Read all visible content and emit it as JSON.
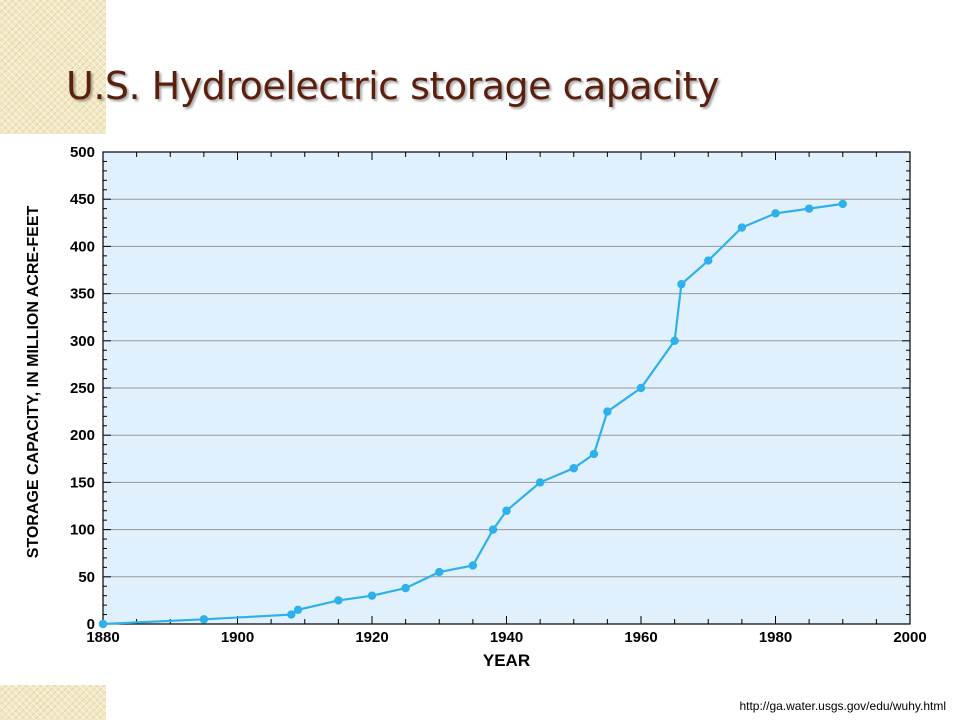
{
  "page": {
    "title": "U.S. Hydroelectric storage capacity",
    "source": "http://ga.water.usgs.gov/edu/wuhy.html"
  },
  "chart_data": {
    "type": "line",
    "title": "",
    "xlabel": "YEAR",
    "ylabel": "STORAGE CAPACITY, IN MILLION ACRE-FEET",
    "xlim": [
      1880,
      2000
    ],
    "ylim": [
      0,
      500
    ],
    "xticks": [
      1880,
      1900,
      1920,
      1940,
      1960,
      1980,
      2000
    ],
    "yticks": [
      0,
      50,
      100,
      150,
      200,
      250,
      300,
      350,
      400,
      450,
      500
    ],
    "grid": "horizontal",
    "colors": {
      "plot_background": "#e0f0fc",
      "line": "#2eb1ea",
      "grid": "#999999"
    },
    "series": [
      {
        "x": [
          1880,
          1895,
          1908,
          1909,
          1915,
          1920,
          1925,
          1930,
          1935,
          1938,
          1940,
          1945,
          1950,
          1953,
          1955,
          1960,
          1965,
          1966,
          1970,
          1975,
          1980,
          1985,
          1990
        ],
        "values": [
          0,
          5,
          10,
          15,
          25,
          30,
          38,
          55,
          62,
          100,
          120,
          150,
          165,
          180,
          225,
          250,
          300,
          360,
          385,
          420,
          435,
          440,
          445
        ]
      }
    ]
  }
}
